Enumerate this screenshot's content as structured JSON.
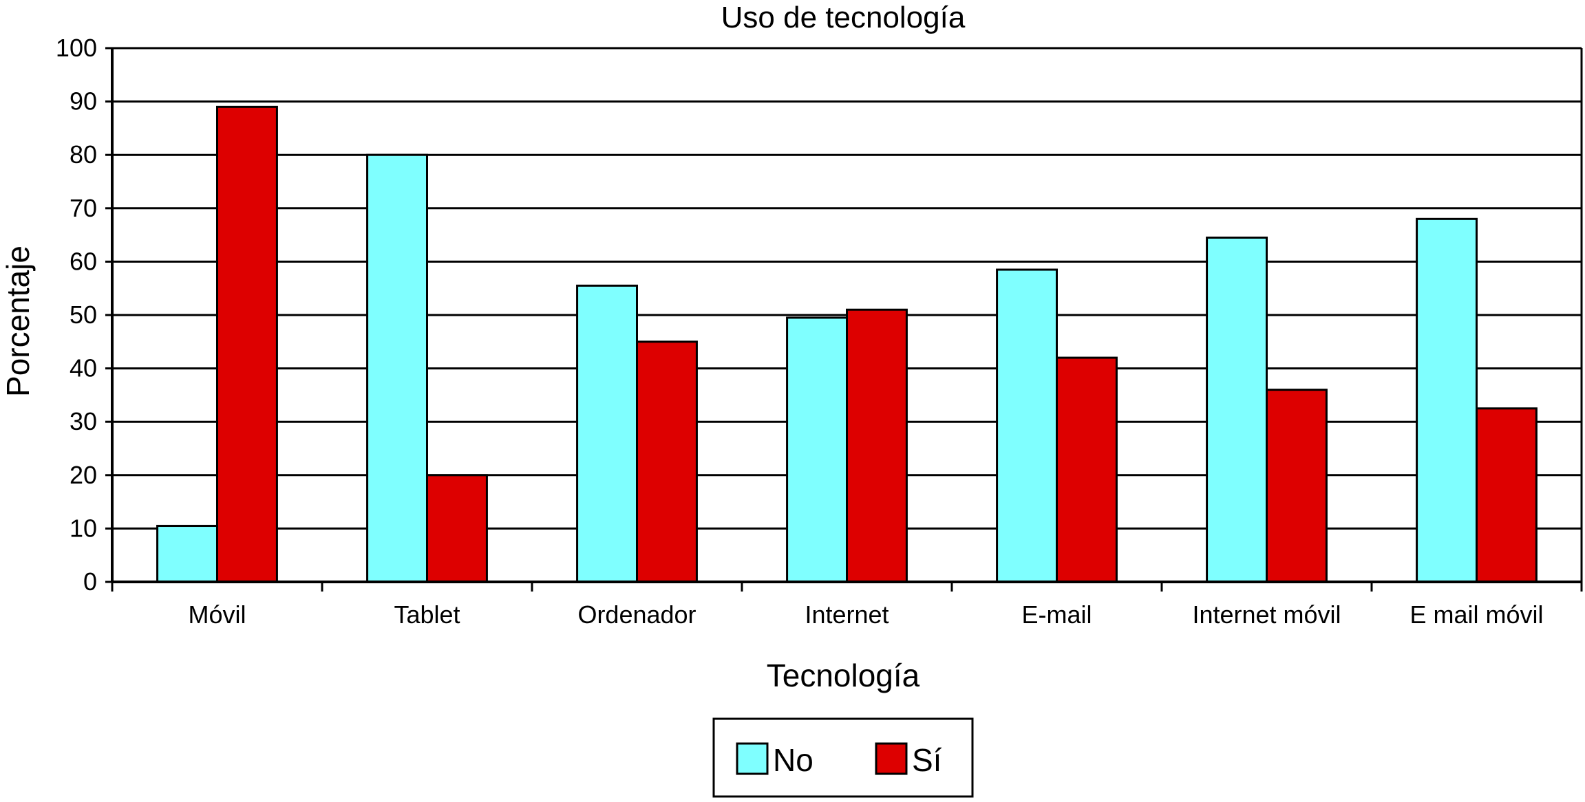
{
  "chart_data": {
    "type": "bar",
    "title": "Uso de tecnología",
    "xlabel": "Tecnología",
    "ylabel": "Porcentaje",
    "ylim": [
      0,
      100
    ],
    "yticks": [
      0,
      10,
      20,
      30,
      40,
      50,
      60,
      70,
      80,
      90,
      100
    ],
    "ytick_labels": [
      "0",
      "10",
      "20",
      "30",
      "40",
      "50",
      "60",
      "70",
      "80",
      "90",
      "100"
    ],
    "grid": true,
    "legend_position": "bottom-center",
    "categories": [
      "Móvil",
      "Tablet",
      "Ordenador",
      "Internet",
      "E-mail",
      "Internet móvil",
      "E mail móvil"
    ],
    "series": [
      {
        "name": "No",
        "color": "#7fffff",
        "values": [
          10.5,
          80,
          55.5,
          49.5,
          58.5,
          64.5,
          68
        ]
      },
      {
        "name": "Sí",
        "color": "#dd0000",
        "values": [
          89,
          20,
          45,
          51,
          42,
          36,
          32.5
        ]
      }
    ]
  }
}
